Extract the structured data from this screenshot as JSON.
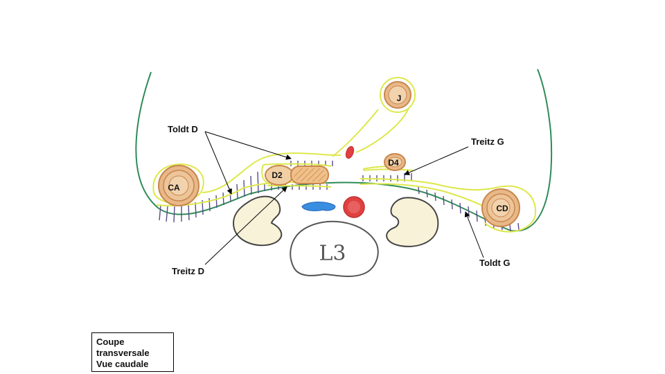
{
  "labels": {
    "toldt_d": "Toldt D",
    "treitz_g": "Treitz G",
    "treitz_d": "Treitz D",
    "toldt_g": "Toldt G"
  },
  "organs": {
    "j": "J",
    "d4": "D4",
    "d2": "D2",
    "ca": "CA",
    "cd": "CD",
    "vertebra": "L3"
  },
  "caption": {
    "line1": "Coupe",
    "line2": "transversale",
    "line3": "Vue caudale"
  },
  "colors": {
    "abdominal_wall": "#2e8b57",
    "peritoneum": "#dde84a",
    "bowel_fill": "#e8b888",
    "bowel_stroke": "#c8864c",
    "fascia_hatch": "#5a4a8a",
    "artery": "#e04040",
    "vein": "#3a8ee0",
    "kidney_fill": "#f7f2d8",
    "outline": "#444444"
  }
}
